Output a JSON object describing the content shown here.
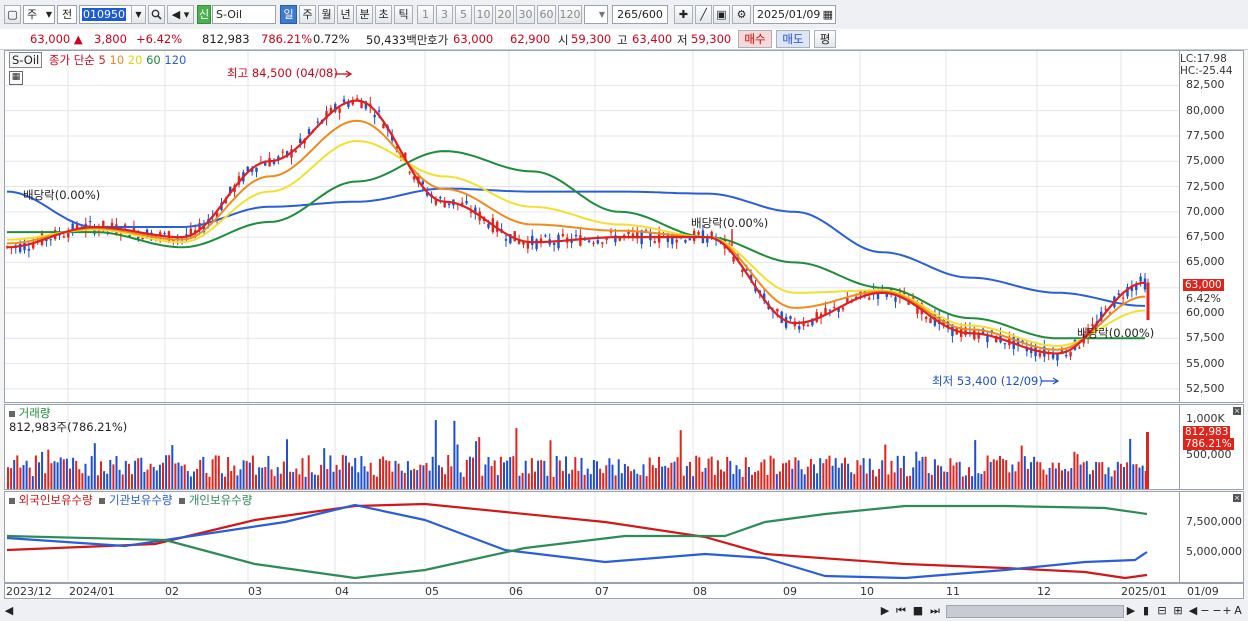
{
  "toolbar": {
    "period": "주",
    "prev": "전",
    "code": "010950",
    "new_badge": "신",
    "name": "S-Oil",
    "tabs": [
      "일",
      "주",
      "월",
      "년",
      "분",
      "초",
      "틱"
    ],
    "numbers": [
      "1",
      "3",
      "5",
      "10",
      "20",
      "30",
      "60",
      "120"
    ],
    "count": "265",
    "count_total": "/600",
    "date": "2025/01/09"
  },
  "quote": {
    "price": "63,000",
    "change": "3,800",
    "change_pct": "+6.42%",
    "volume": "812,983",
    "volume_ratio": "786.21%",
    "turnover": "0.72%",
    "amount": "50,433백만",
    "hoga_label": "호가",
    "hoga_ask": "63,000",
    "hoga_bid": "62,900",
    "open_label": "시",
    "open": "59,300",
    "high_label": "고",
    "high": "63,400",
    "low_label": "저",
    "low": "59,300",
    "buy": "매수",
    "sell": "매도",
    "avg": "평"
  },
  "price_panel": {
    "symbol": "S-Oil",
    "ma_label": "종가 단순",
    "ma_periods": [
      "5",
      "10",
      "20",
      "60",
      "120"
    ],
    "ma_colors": [
      "#e02020",
      "#f08a1c",
      "#f2e030",
      "#1e8c3a",
      "#2a5ed8"
    ],
    "lc": "LC:17.98",
    "hc": "HC:-25.44",
    "y_ticks": [
      "82,500",
      "80,000",
      "77,500",
      "75,000",
      "72,500",
      "70,000",
      "67,500",
      "65,000",
      "62,500",
      "60,000",
      "57,500",
      "55,000",
      "52,500"
    ],
    "price_tag": "63,000",
    "pct_tag": "6.42%",
    "high_note": "최고 84,500 (04/08)",
    "low_note": "최저 53,400 (12/09)",
    "dividend_note": "배당락(0.00%)"
  },
  "volume_panel": {
    "label": "거래량",
    "value": "812,983주(786.21%)",
    "y_ticks": [
      "1,000K",
      "500,000"
    ],
    "tag_value": "812,983",
    "tag_pct": "786.21%"
  },
  "holding_panel": {
    "legend": [
      "외국인보유수량",
      "기관보유수량",
      "개인보유수량"
    ],
    "colors": [
      "#d01818",
      "#2a5ed8",
      "#2e8b57"
    ],
    "y_ticks": [
      "7,500,000",
      "5,000,000"
    ]
  },
  "x_axis": [
    "2023/12",
    "2024/01",
    "02",
    "03",
    "04",
    "05",
    "06",
    "07",
    "08",
    "09",
    "10",
    "11",
    "12",
    "2025/01",
    "01/09"
  ],
  "chart_data": {
    "type": "line",
    "title": "S-Oil",
    "x": [
      "2023-12",
      "2024-01",
      "2024-02",
      "2024-03",
      "2024-04",
      "2024-05",
      "2024-06",
      "2024-07",
      "2024-08",
      "2024-09",
      "2024-10",
      "2024-11",
      "2024-12",
      "2025-01-09"
    ],
    "ylim": [
      51500,
      85500
    ],
    "series": [
      {
        "name": "5",
        "values": [
          66500,
          68500,
          67500,
          75000,
          81000,
          71000,
          67000,
          67500,
          67500,
          59000,
          62000,
          58000,
          56000,
          63000
        ]
      },
      {
        "name": "60",
        "values": [
          68000,
          68000,
          66500,
          69000,
          73000,
          76000,
          74000,
          70000,
          67500,
          65000,
          62500,
          59500,
          57500,
          57500
        ]
      },
      {
        "name": "120",
        "values": [
          72000,
          68500,
          68500,
          70500,
          71000,
          72300,
          72000,
          72000,
          71800,
          70000,
          66000,
          63500,
          62000,
          60700
        ]
      }
    ],
    "annotations": [
      {
        "text": "최고 84,500 (04/08)",
        "value": 84500
      },
      {
        "text": "최저 53,400 (12/09)",
        "value": 53400
      }
    ]
  }
}
